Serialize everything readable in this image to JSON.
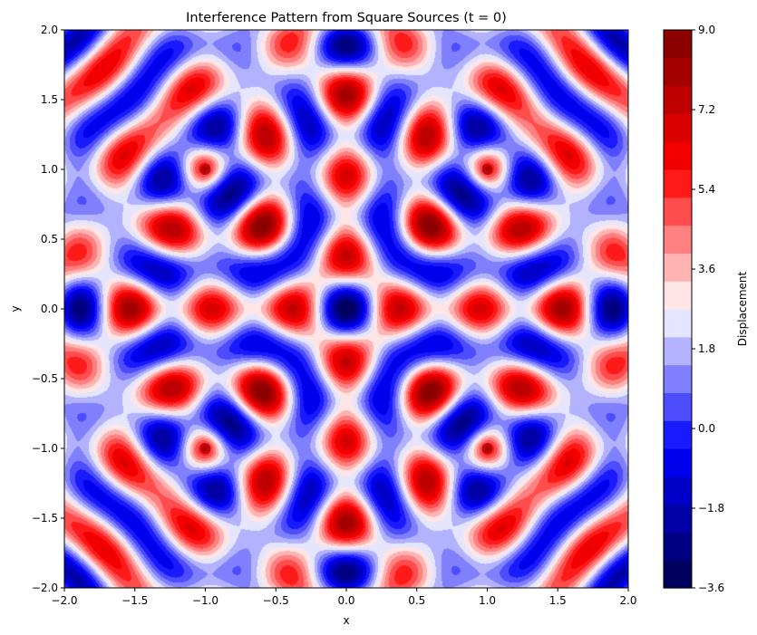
{
  "chart_data": {
    "type": "heatmap",
    "title": "Interference Pattern from Square Sources (t = 0)",
    "xlabel": "x",
    "ylabel": "y",
    "xlim": [
      -2.0,
      2.0
    ],
    "ylim": [
      -2.0,
      2.0
    ],
    "x_ticks": [
      "−2.0",
      "−1.5",
      "−1.0",
      "−0.5",
      "0.0",
      "0.5",
      "1.0",
      "1.5",
      "2.0"
    ],
    "y_ticks": [
      "−2.0",
      "−1.5",
      "−1.0",
      "−0.5",
      "0.0",
      "0.5",
      "1.0",
      "1.5",
      "2.0"
    ],
    "x_tick_values": [
      -2.0,
      -1.5,
      -1.0,
      -0.5,
      0.0,
      0.5,
      1.0,
      1.5,
      2.0
    ],
    "y_tick_values": [
      -2.0,
      -1.5,
      -1.0,
      -0.5,
      0.0,
      0.5,
      1.0,
      1.5,
      2.0
    ],
    "sources": [
      {
        "x": -1.0,
        "y": 1.0
      },
      {
        "x": 1.0,
        "y": 1.0
      },
      {
        "x": -1.0,
        "y": -1.0
      },
      {
        "x": 1.0,
        "y": -1.0
      }
    ],
    "colormap": "seismic",
    "grid": false,
    "colorbar": {
      "label": "Displacement",
      "range": [
        -3.6,
        9.0
      ],
      "tick_values": [
        -3.6,
        -1.8,
        0.0,
        1.8,
        3.6,
        5.4,
        7.2,
        9.0
      ],
      "tick_labels": [
        "−3.6",
        "−1.8",
        "0.0",
        "1.8",
        "3.6",
        "5.4",
        "7.2",
        "9.0"
      ],
      "levels": 21
    }
  }
}
